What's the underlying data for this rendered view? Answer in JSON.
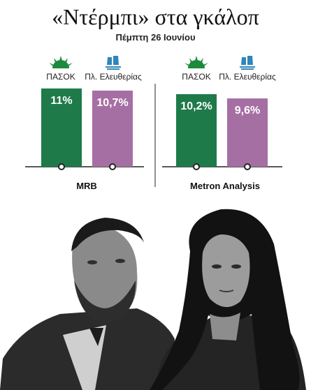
{
  "header": {
    "title": "«Ντέρμπι» στα γκάλοπ",
    "subtitle": "Πέμπτη 26 Ιουνίου"
  },
  "colors": {
    "pasok": "#1f7a4a",
    "plefth": "#a66fa3",
    "axis": "#222222",
    "pasok_logo": "#1c8a3c",
    "plefth_logo": "#2f86b8"
  },
  "chart_data": [
    {
      "type": "bar",
      "xlabel": "MRB",
      "categories": [
        "ΠΑΣΟΚ",
        "Πλ. Ελευθερίας"
      ],
      "values": [
        11,
        10.7
      ],
      "value_labels": [
        "11%",
        "10,7%"
      ],
      "icons": [
        "pasok-sun-logo",
        "ship-logo"
      ]
    },
    {
      "type": "bar",
      "xlabel": "Metron Analysis",
      "categories": [
        "ΠΑΣΟΚ",
        "Πλ. Ελευθερίας"
      ],
      "values": [
        10.2,
        9.6
      ],
      "value_labels": [
        "10,2%",
        "9,6%"
      ],
      "icons": [
        "pasok-sun-logo",
        "ship-logo"
      ]
    }
  ]
}
